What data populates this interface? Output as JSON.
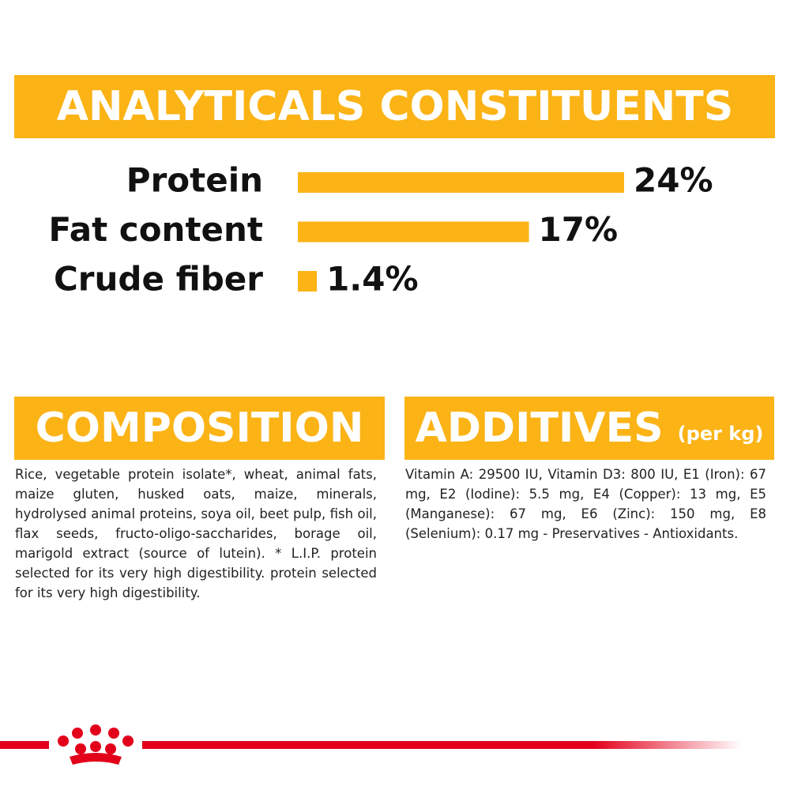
{
  "chart_data": {
    "type": "bar",
    "title": "ANALYTICALS CONSTITUENTS",
    "categories": [
      "Protein",
      "Fat content",
      "Crude fiber"
    ],
    "values": [
      24,
      17,
      1.4
    ],
    "value_labels": [
      "24%",
      "17%",
      "1.4%"
    ],
    "color": "#fbb316"
  },
  "composition": {
    "title": "COMPOSITION",
    "text": "Rice, vegetable protein isolate*, wheat, animal fats, maize gluten, husked oats, maize, minerals, hydrolysed animal proteins, soya oil, beet pulp, fish oil, flax seeds, fructo-oligo-saccharides, borage oil, marigold extract (source of lutein). * L.I.P. protein selected for its very high digestibility. protein selected for its very high digestibility."
  },
  "additives": {
    "title": "ADDITIVES",
    "unit": "(per kg)",
    "text": "Vitamin A: 29500 IU, Vitamin D3: 800 IU, E1 (Iron): 67 mg, E2 (Iodine): 5.5 mg, E4 (Copper): 13 mg, E5 (Manganese): 67 mg, E6 (Zinc): 150 mg, E8 (Selenium): 0.17 mg - Preservatives - Antioxidants."
  }
}
